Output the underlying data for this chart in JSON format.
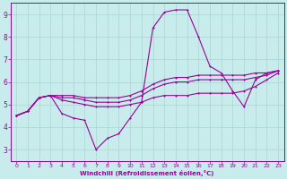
{
  "xlabel": "Windchill (Refroidissement éolien,°C)",
  "bg_color": "#c8ecec",
  "line_color": "#990099",
  "grid_color": "#aad4d4",
  "xlim": [
    -0.5,
    23.5
  ],
  "ylim": [
    2.5,
    9.5
  ],
  "xticks": [
    0,
    1,
    2,
    3,
    4,
    5,
    6,
    7,
    8,
    9,
    10,
    11,
    12,
    13,
    14,
    15,
    16,
    17,
    18,
    19,
    20,
    21,
    22,
    23
  ],
  "yticks": [
    3,
    4,
    5,
    6,
    7,
    8,
    9
  ],
  "series": [
    {
      "x": [
        0,
        1,
        2,
        3,
        4,
        5,
        6,
        7,
        8,
        9,
        10,
        11,
        12,
        13,
        14,
        15,
        16,
        17,
        18,
        19,
        20,
        21,
        22,
        23
      ],
      "y": [
        4.5,
        4.7,
        5.3,
        5.4,
        4.6,
        4.4,
        4.3,
        3.0,
        3.5,
        3.7,
        4.4,
        5.1,
        8.4,
        9.1,
        9.2,
        9.2,
        8.0,
        6.7,
        6.4,
        5.6,
        4.9,
        6.1,
        6.4,
        6.5
      ],
      "marker": true
    },
    {
      "x": [
        0,
        1,
        2,
        3,
        4,
        5,
        6,
        7,
        8,
        9,
        10,
        11,
        12,
        13,
        14,
        15,
        16,
        17,
        18,
        19,
        20,
        21,
        22,
        23
      ],
      "y": [
        4.5,
        4.7,
        5.3,
        5.4,
        5.4,
        5.4,
        5.3,
        5.3,
        5.3,
        5.3,
        5.4,
        5.6,
        5.9,
        6.1,
        6.2,
        6.2,
        6.3,
        6.3,
        6.3,
        6.3,
        6.3,
        6.4,
        6.4,
        6.5
      ],
      "marker": true
    },
    {
      "x": [
        0,
        1,
        2,
        3,
        4,
        5,
        6,
        7,
        8,
        9,
        10,
        11,
        12,
        13,
        14,
        15,
        16,
        17,
        18,
        19,
        20,
        21,
        22,
        23
      ],
      "y": [
        4.5,
        4.7,
        5.3,
        5.4,
        5.3,
        5.3,
        5.2,
        5.1,
        5.1,
        5.1,
        5.2,
        5.4,
        5.7,
        5.9,
        6.0,
        6.0,
        6.1,
        6.1,
        6.1,
        6.1,
        6.1,
        6.2,
        6.3,
        6.5
      ],
      "marker": true
    },
    {
      "x": [
        0,
        1,
        2,
        3,
        4,
        5,
        6,
        7,
        8,
        9,
        10,
        11,
        12,
        13,
        14,
        15,
        16,
        17,
        18,
        19,
        20,
        21,
        22,
        23
      ],
      "y": [
        4.5,
        4.7,
        5.3,
        5.4,
        5.2,
        5.1,
        5.0,
        4.9,
        4.9,
        4.9,
        5.0,
        5.1,
        5.3,
        5.4,
        5.4,
        5.4,
        5.5,
        5.5,
        5.5,
        5.5,
        5.6,
        5.8,
        6.1,
        6.4
      ],
      "marker": true
    }
  ]
}
